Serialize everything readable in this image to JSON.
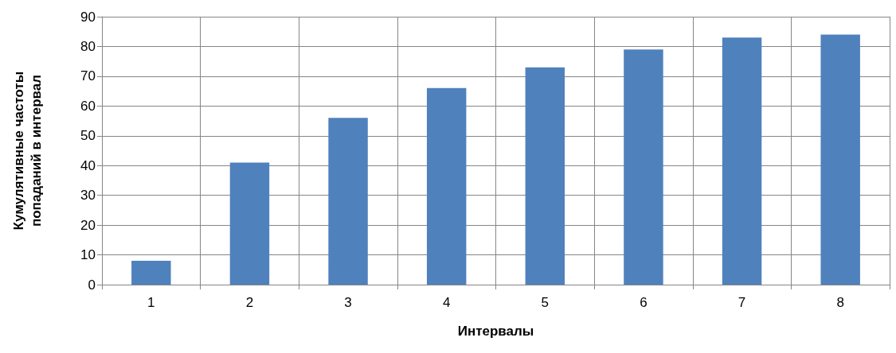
{
  "chart_data": {
    "type": "bar",
    "xlabel": "Интервалы",
    "ylabel": "Кумулятивные частоты попаданий в интервал",
    "categories": [
      "1",
      "2",
      "3",
      "4",
      "5",
      "6",
      "7",
      "8"
    ],
    "values": [
      8,
      41,
      56,
      66,
      73,
      79,
      83,
      84
    ],
    "color": "#4f81bd",
    "ylim": [
      0,
      90
    ],
    "yticks": [
      0,
      10,
      20,
      30,
      40,
      50,
      60,
      70,
      80,
      90
    ],
    "grid": true
  }
}
